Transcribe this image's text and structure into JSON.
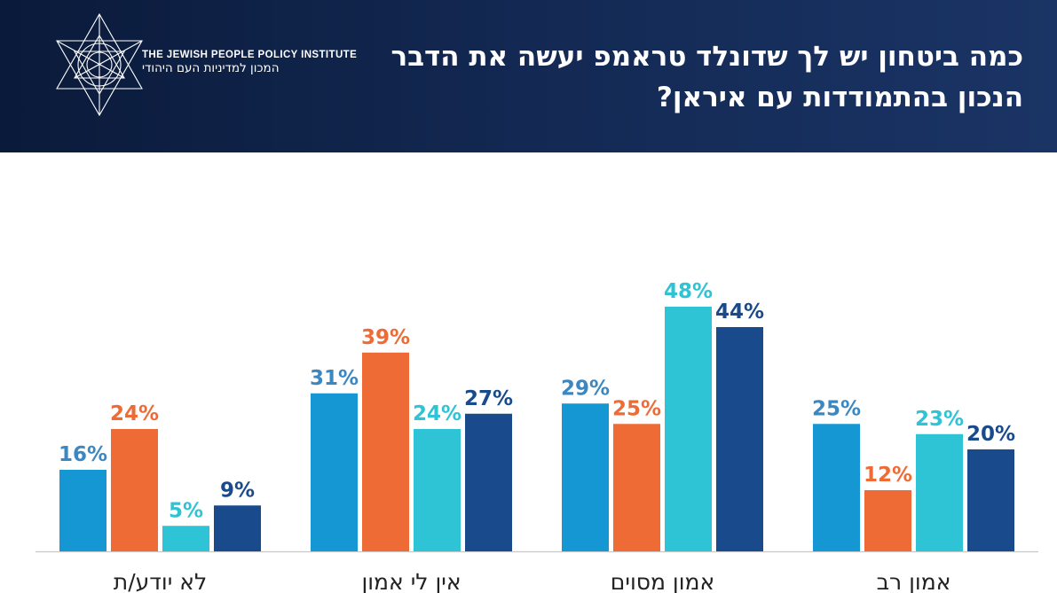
{
  "header": {
    "title": "כמה ביטחון יש לך שדונלד טראמפ יעשה את הדבר הנכון בהתמודדות עם איראן?",
    "logo_text_en": "THE JEWISH PEOPLE POLICY INSTITUTE",
    "logo_text_he": "המכון למדיניות העם היהודי"
  },
  "colors": {
    "header_bg": "#0f2147",
    "series": [
      "#1597d3",
      "#ef6b35",
      "#2ec3d5",
      "#184a8c"
    ],
    "label_colors": [
      "#3b87c2",
      "#ef6b35",
      "#2ec3d5",
      "#184a8c"
    ]
  },
  "chart_data": {
    "type": "bar",
    "categories": [
      "לא יודע/ת",
      "אין לי אמון",
      "אמון מסוים",
      "אמון רב"
    ],
    "series": [
      {
        "values": [
          16,
          31,
          29,
          25
        ]
      },
      {
        "values": [
          24,
          39,
          25,
          12
        ]
      },
      {
        "values": [
          5,
          24,
          48,
          23
        ]
      },
      {
        "values": [
          9,
          27,
          44,
          20
        ]
      }
    ],
    "value_suffix": "%",
    "ylim": [
      0,
      60
    ],
    "grid": false,
    "legend": "none"
  }
}
